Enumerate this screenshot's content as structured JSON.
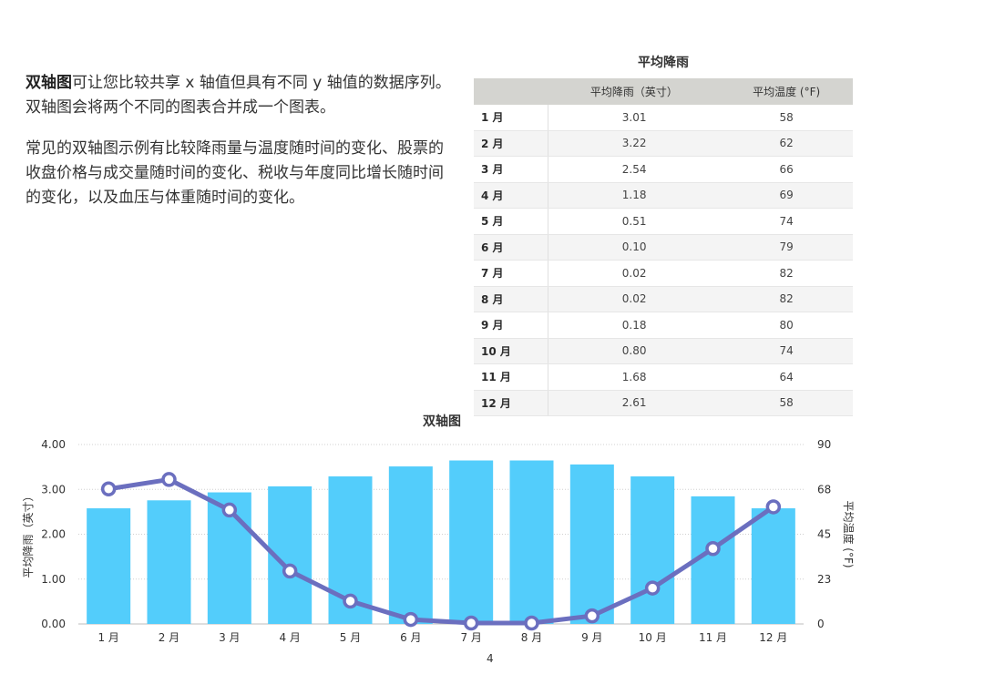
{
  "intro": {
    "p1_bold": "双轴图",
    "p1_rest": "可让您比较共享 x 轴值但具有不同 y 轴值的数据序列。双轴图会将两个不同的图表合并成一个图表。",
    "p2": "常见的双轴图示例有比较降雨量与温度随时间的变化、股票的收盘价格与成交量随时间的变化、税收与年度同比增长随时间的变化，以及血压与体重随时间的变化。"
  },
  "table": {
    "title": "平均降雨",
    "headers": [
      "",
      "平均降雨（英寸）",
      "平均温度 (°F)"
    ],
    "rows": [
      [
        "1 月",
        "3.01",
        "58"
      ],
      [
        "2 月",
        "3.22",
        "62"
      ],
      [
        "3 月",
        "2.54",
        "66"
      ],
      [
        "4 月",
        "1.18",
        "69"
      ],
      [
        "5 月",
        "0.51",
        "74"
      ],
      [
        "6 月",
        "0.10",
        "79"
      ],
      [
        "7 月",
        "0.02",
        "82"
      ],
      [
        "8 月",
        "0.02",
        "82"
      ],
      [
        "9 月",
        "0.18",
        "80"
      ],
      [
        "10 月",
        "0.80",
        "74"
      ],
      [
        "11 月",
        "1.68",
        "64"
      ],
      [
        "12 月",
        "2.61",
        "58"
      ]
    ]
  },
  "page_number": "4",
  "chart_data": {
    "type": "bar+line",
    "title": "双轴图",
    "categories": [
      "1 月",
      "2 月",
      "3 月",
      "4 月",
      "5 月",
      "6 月",
      "7 月",
      "8 月",
      "9 月",
      "10 月",
      "11 月",
      "12 月"
    ],
    "y_left": {
      "label": "平均降雨（英寸）",
      "ticks": [
        "0.00",
        "1.00",
        "2.00",
        "3.00",
        "4.00"
      ],
      "range": [
        0,
        4
      ]
    },
    "y_right": {
      "label": "平均温度 (°F)",
      "ticks": [
        "0",
        "23",
        "45",
        "68",
        "90"
      ],
      "range": [
        0,
        90
      ]
    },
    "series": [
      {
        "type": "bar",
        "axis": "right",
        "color": "#53cdfb",
        "values": [
          58,
          62,
          66,
          69,
          74,
          79,
          82,
          82,
          80,
          74,
          64,
          58
        ]
      },
      {
        "type": "line",
        "axis": "left",
        "color": "#6b6fbf",
        "values": [
          3.01,
          3.22,
          2.54,
          1.18,
          0.51,
          0.1,
          0.02,
          0.02,
          0.18,
          0.8,
          1.68,
          2.61
        ]
      }
    ],
    "grid": true
  }
}
